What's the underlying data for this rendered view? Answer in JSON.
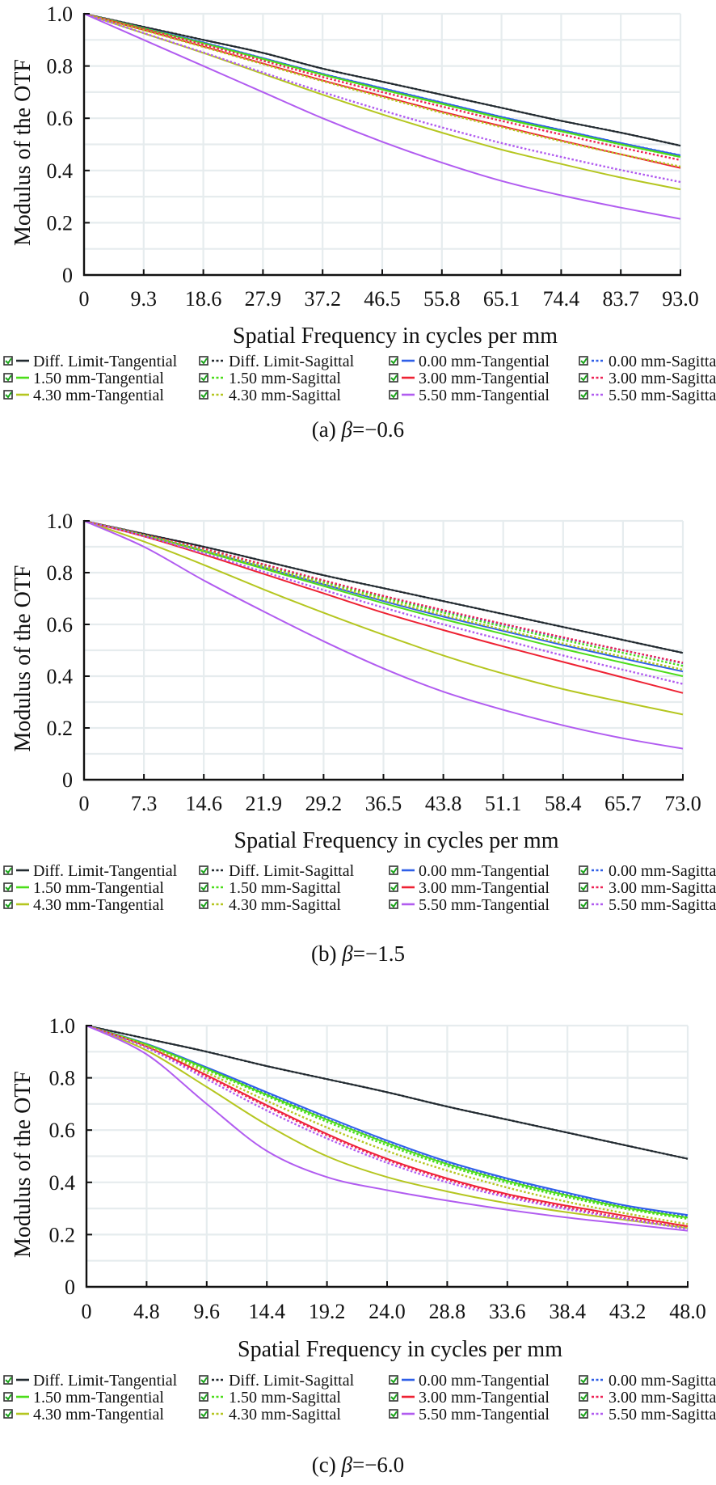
{
  "legend_labels": [
    "Diff. Limit-Tangential",
    "Diff. Limit-Sagittal",
    "0.00 mm-Tangential",
    "0.00 mm-Sagittal",
    "1.50 mm-Tangential",
    "1.50 mm-Sagittal",
    "3.00 mm-Tangential",
    "3.00 mm-Sagittal",
    "4.30 mm-Tangential",
    "4.30 mm-Sagittal",
    "5.50 mm-Tangential",
    "5.50 mm-Sagittal"
  ],
  "series_style": [
    {
      "name": "Diff. Limit-Tangential",
      "color": "#222a30",
      "dash": false
    },
    {
      "name": "Diff. Limit-Sagittal",
      "color": "#222a30",
      "dash": true
    },
    {
      "name": "0.00 mm-Tangential",
      "color": "#2f5fe8",
      "dash": false
    },
    {
      "name": "0.00 mm-Sagittal",
      "color": "#2f5fe8",
      "dash": true
    },
    {
      "name": "1.50 mm-Tangential",
      "color": "#4cdd1a",
      "dash": false
    },
    {
      "name": "1.50 mm-Sagittal",
      "color": "#4cdd1a",
      "dash": true
    },
    {
      "name": "3.00 mm-Tangential",
      "color": "#ee2233",
      "dash": false
    },
    {
      "name": "3.00 mm-Sagittal",
      "color": "#ee2255",
      "dash": true
    },
    {
      "name": "4.30 mm-Tangential",
      "color": "#b5c620",
      "dash": false
    },
    {
      "name": "4.30 mm-Sagittal",
      "color": "#b5c620",
      "dash": true
    },
    {
      "name": "5.50 mm-Tangential",
      "color": "#b15cf0",
      "dash": false
    },
    {
      "name": "5.50 mm-Sagittal",
      "color": "#b15cf0",
      "dash": true
    }
  ],
  "chart_data": [
    {
      "type": "line",
      "caption_prefix": "(a) ",
      "caption_beta": "β",
      "caption_value": "=−0.6",
      "xlabel": "Spatial Frequency in cycles per mm",
      "ylabel": "Modulus of the OTF",
      "xlim": [
        0,
        93.0
      ],
      "ylim": [
        0,
        1.0
      ],
      "grid": true,
      "legend_position": "bottom",
      "x_ticks": [
        "0",
        "9.3",
        "18.6",
        "27.9",
        "37.2",
        "46.5",
        "55.8",
        "65.1",
        "74.4",
        "83.7",
        "93.0"
      ],
      "y_ticks": [
        "0",
        "0.2",
        "0.4",
        "0.6",
        "0.8",
        "1.0"
      ],
      "x": [
        0,
        9.3,
        18.6,
        27.9,
        37.2,
        46.5,
        55.8,
        65.1,
        74.4,
        83.7,
        93.0
      ],
      "series": [
        {
          "name": "Diff. Limit-Tangential",
          "values": [
            1.0,
            0.95,
            0.9,
            0.85,
            0.79,
            0.74,
            0.69,
            0.64,
            0.59,
            0.545,
            0.495
          ]
        },
        {
          "name": "Diff. Limit-Sagittal",
          "values": [
            1.0,
            0.95,
            0.9,
            0.85,
            0.79,
            0.74,
            0.69,
            0.64,
            0.59,
            0.545,
            0.495
          ]
        },
        {
          "name": "0.00 mm-Tangential",
          "values": [
            1.0,
            0.945,
            0.89,
            0.83,
            0.77,
            0.715,
            0.66,
            0.605,
            0.555,
            0.505,
            0.458
          ]
        },
        {
          "name": "0.00 mm-Sagittal",
          "values": [
            1.0,
            0.945,
            0.89,
            0.83,
            0.77,
            0.715,
            0.66,
            0.605,
            0.555,
            0.505,
            0.458
          ]
        },
        {
          "name": "1.50 mm-Tangential",
          "values": [
            1.0,
            0.944,
            0.887,
            0.827,
            0.767,
            0.71,
            0.655,
            0.6,
            0.55,
            0.5,
            0.452
          ]
        },
        {
          "name": "1.50 mm-Sagittal",
          "values": [
            1.0,
            0.944,
            0.887,
            0.827,
            0.767,
            0.71,
            0.655,
            0.6,
            0.55,
            0.5,
            0.452
          ]
        },
        {
          "name": "3.00 mm-Tangential",
          "values": [
            1.0,
            0.938,
            0.875,
            0.81,
            0.745,
            0.685,
            0.625,
            0.57,
            0.515,
            0.462,
            0.41
          ]
        },
        {
          "name": "3.00 mm-Sagittal",
          "values": [
            1.0,
            0.942,
            0.882,
            0.82,
            0.758,
            0.7,
            0.645,
            0.59,
            0.538,
            0.488,
            0.44
          ]
        },
        {
          "name": "4.30 mm-Tangential",
          "values": [
            1.0,
            0.925,
            0.85,
            0.77,
            0.69,
            0.615,
            0.545,
            0.48,
            0.425,
            0.373,
            0.328
          ]
        },
        {
          "name": "4.30 mm-Sagittal",
          "values": [
            1.0,
            0.937,
            0.873,
            0.807,
            0.742,
            0.681,
            0.621,
            0.566,
            0.512,
            0.462,
            0.415
          ]
        },
        {
          "name": "5.50 mm-Tangential",
          "values": [
            1.0,
            0.9,
            0.8,
            0.7,
            0.6,
            0.51,
            0.43,
            0.36,
            0.305,
            0.258,
            0.215
          ]
        },
        {
          "name": "5.50 mm-Sagittal",
          "values": [
            1.0,
            0.926,
            0.852,
            0.775,
            0.7,
            0.63,
            0.565,
            0.505,
            0.452,
            0.402,
            0.356
          ]
        }
      ]
    },
    {
      "type": "line",
      "caption_prefix": "(b) ",
      "caption_beta": "β",
      "caption_value": "=−1.5",
      "xlabel": "Spatial Frequency in cycles per mm",
      "ylabel": "Modulus of the OTF",
      "xlim": [
        0,
        73.0
      ],
      "ylim": [
        0,
        1.0
      ],
      "grid": true,
      "legend_position": "bottom",
      "x_ticks": [
        "0",
        "7.3",
        "14.6",
        "21.9",
        "29.2",
        "36.5",
        "43.8",
        "51.1",
        "58.4",
        "65.7",
        "73.0"
      ],
      "y_ticks": [
        "0",
        "0.2",
        "0.4",
        "0.6",
        "0.8",
        "1.0"
      ],
      "x": [
        0,
        7.3,
        14.6,
        21.9,
        29.2,
        36.5,
        43.8,
        51.1,
        58.4,
        65.7,
        73.0
      ],
      "series": [
        {
          "name": "Diff. Limit-Tangential",
          "values": [
            1.0,
            0.95,
            0.9,
            0.845,
            0.79,
            0.74,
            0.69,
            0.64,
            0.59,
            0.54,
            0.49
          ]
        },
        {
          "name": "Diff. Limit-Sagittal",
          "values": [
            1.0,
            0.95,
            0.9,
            0.845,
            0.79,
            0.74,
            0.69,
            0.64,
            0.59,
            0.54,
            0.49
          ]
        },
        {
          "name": "0.00 mm-Tangential",
          "values": [
            1.0,
            0.945,
            0.885,
            0.82,
            0.755,
            0.69,
            0.63,
            0.575,
            0.52,
            0.468,
            0.418
          ]
        },
        {
          "name": "0.00 mm-Sagittal",
          "values": [
            1.0,
            0.946,
            0.89,
            0.83,
            0.768,
            0.708,
            0.652,
            0.6,
            0.548,
            0.5,
            0.45
          ]
        },
        {
          "name": "1.50 mm-Tangential",
          "values": [
            1.0,
            0.944,
            0.882,
            0.815,
            0.748,
            0.682,
            0.62,
            0.563,
            0.505,
            0.452,
            0.4
          ]
        },
        {
          "name": "1.50 mm-Sagittal",
          "values": [
            1.0,
            0.946,
            0.888,
            0.826,
            0.764,
            0.703,
            0.646,
            0.592,
            0.54,
            0.49,
            0.44
          ]
        },
        {
          "name": "3.00 mm-Tangential",
          "values": [
            1.0,
            0.94,
            0.87,
            0.795,
            0.72,
            0.645,
            0.578,
            0.515,
            0.455,
            0.395,
            0.335
          ]
        },
        {
          "name": "3.00 mm-Sagittal",
          "values": [
            1.0,
            0.947,
            0.892,
            0.832,
            0.77,
            0.71,
            0.655,
            0.602,
            0.55,
            0.5,
            0.452
          ]
        },
        {
          "name": "4.30 mm-Tangential",
          "values": [
            1.0,
            0.92,
            0.83,
            0.735,
            0.645,
            0.56,
            0.48,
            0.41,
            0.35,
            0.3,
            0.252
          ]
        },
        {
          "name": "4.30 mm-Sagittal",
          "values": [
            1.0,
            0.945,
            0.886,
            0.822,
            0.758,
            0.695,
            0.636,
            0.58,
            0.526,
            0.475,
            0.425
          ]
        },
        {
          "name": "5.50 mm-Tangential",
          "values": [
            1.0,
            0.9,
            0.77,
            0.65,
            0.535,
            0.43,
            0.34,
            0.27,
            0.21,
            0.16,
            0.12
          ]
        },
        {
          "name": "5.50 mm-Sagittal",
          "values": [
            1.0,
            0.942,
            0.875,
            0.803,
            0.733,
            0.665,
            0.6,
            0.54,
            0.48,
            0.425,
            0.37
          ]
        }
      ]
    },
    {
      "type": "line",
      "caption_prefix": "(c) ",
      "caption_beta": "β",
      "caption_value": "=−6.0",
      "xlabel": "Spatial Frequency in cycles per mm",
      "ylabel": "Modulus of the OTF",
      "xlim": [
        0,
        48.0
      ],
      "ylim": [
        0,
        1.0
      ],
      "grid": true,
      "legend_position": "bottom",
      "x_ticks": [
        "0",
        "4.8",
        "9.6",
        "14.4",
        "19.2",
        "24.0",
        "28.8",
        "33.6",
        "38.4",
        "43.2",
        "48.0"
      ],
      "y_ticks": [
        "0",
        "0.2",
        "0.4",
        "0.6",
        "0.8",
        "1.0"
      ],
      "x": [
        0,
        4.8,
        9.6,
        14.4,
        19.2,
        24.0,
        28.8,
        33.6,
        38.4,
        43.2,
        48.0
      ],
      "series": [
        {
          "name": "Diff. Limit-Tangential",
          "values": [
            1.0,
            0.95,
            0.9,
            0.845,
            0.795,
            0.745,
            0.69,
            0.64,
            0.59,
            0.54,
            0.49
          ]
        },
        {
          "name": "Diff. Limit-Sagittal",
          "values": [
            1.0,
            0.95,
            0.9,
            0.845,
            0.795,
            0.745,
            0.69,
            0.64,
            0.59,
            0.54,
            0.49
          ]
        },
        {
          "name": "0.00 mm-Tangential",
          "values": [
            1.0,
            0.93,
            0.84,
            0.745,
            0.65,
            0.56,
            0.48,
            0.415,
            0.36,
            0.31,
            0.275
          ]
        },
        {
          "name": "0.00 mm-Sagittal",
          "values": [
            1.0,
            0.928,
            0.835,
            0.738,
            0.642,
            0.552,
            0.472,
            0.408,
            0.353,
            0.305,
            0.27
          ]
        },
        {
          "name": "1.50 mm-Tangential",
          "values": [
            1.0,
            0.928,
            0.835,
            0.735,
            0.64,
            0.55,
            0.47,
            0.405,
            0.35,
            0.302,
            0.265
          ]
        },
        {
          "name": "1.50 mm-Sagittal",
          "values": [
            1.0,
            0.926,
            0.83,
            0.73,
            0.632,
            0.542,
            0.463,
            0.398,
            0.343,
            0.297,
            0.26
          ]
        },
        {
          "name": "3.00 mm-Tangential",
          "values": [
            1.0,
            0.92,
            0.81,
            0.695,
            0.585,
            0.49,
            0.415,
            0.355,
            0.31,
            0.27,
            0.232
          ]
        },
        {
          "name": "3.00 mm-Sagittal",
          "values": [
            1.0,
            0.918,
            0.805,
            0.69,
            0.58,
            0.485,
            0.41,
            0.35,
            0.303,
            0.262,
            0.225
          ]
        },
        {
          "name": "4.30 mm-Tangential",
          "values": [
            1.0,
            0.905,
            0.765,
            0.62,
            0.5,
            0.42,
            0.365,
            0.32,
            0.285,
            0.255,
            0.225
          ]
        },
        {
          "name": "4.30 mm-Sagittal",
          "values": [
            1.0,
            0.923,
            0.82,
            0.712,
            0.61,
            0.52,
            0.445,
            0.38,
            0.325,
            0.28,
            0.24
          ]
        },
        {
          "name": "5.50 mm-Tangential",
          "values": [
            1.0,
            0.89,
            0.7,
            0.52,
            0.42,
            0.37,
            0.33,
            0.295,
            0.265,
            0.24,
            0.215
          ]
        },
        {
          "name": "5.50 mm-Sagittal",
          "values": [
            1.0,
            0.915,
            0.795,
            0.675,
            0.568,
            0.475,
            0.4,
            0.343,
            0.297,
            0.258,
            0.222
          ]
        }
      ]
    }
  ]
}
